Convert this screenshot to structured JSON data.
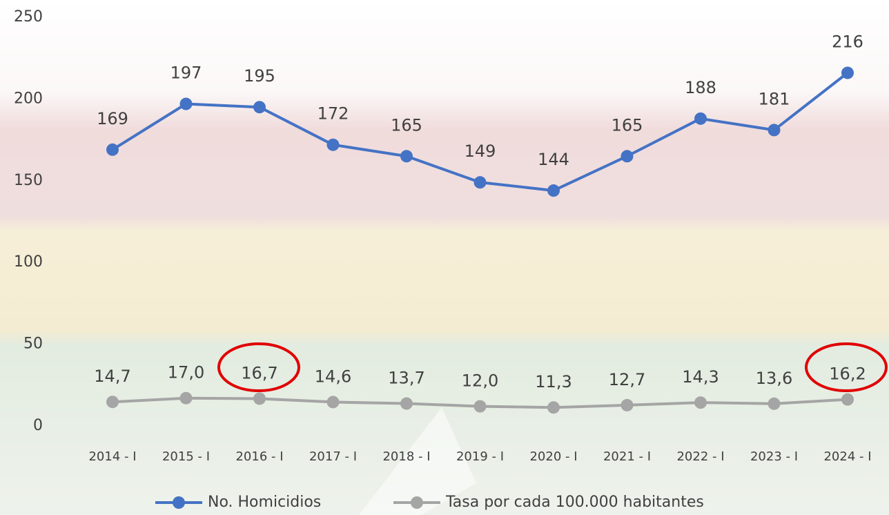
{
  "chart_data": {
    "type": "line",
    "categories": [
      "2014 - I",
      "2015 - I",
      "2016 - I",
      "2017 - I",
      "2018 - I",
      "2019 - I",
      "2020 - I",
      "2021 - I",
      "2022 - I",
      "2023 - I",
      "2024 - I"
    ],
    "series": [
      {
        "name": "No. Homicidios",
        "color": "#4472c4",
        "values": [
          169,
          197,
          195,
          172,
          165,
          149,
          144,
          165,
          188,
          181,
          216
        ]
      },
      {
        "name": "Tasa por cada 100.000 habitantes",
        "color": "#a5a5a5",
        "values": [
          14.7,
          17.0,
          16.7,
          14.6,
          13.7,
          12.0,
          11.3,
          12.7,
          14.3,
          13.6,
          16.2
        ],
        "value_labels": [
          "14,7",
          "17,0",
          "16,7",
          "14,6",
          "13,7",
          "12,0",
          "11,3",
          "12,7",
          "14,3",
          "13,6",
          "16,2"
        ]
      }
    ],
    "ylim": [
      0,
      250
    ],
    "yticks": [
      0,
      50,
      100,
      150,
      200,
      250
    ],
    "grid": false,
    "legend": "bottom"
  }
}
